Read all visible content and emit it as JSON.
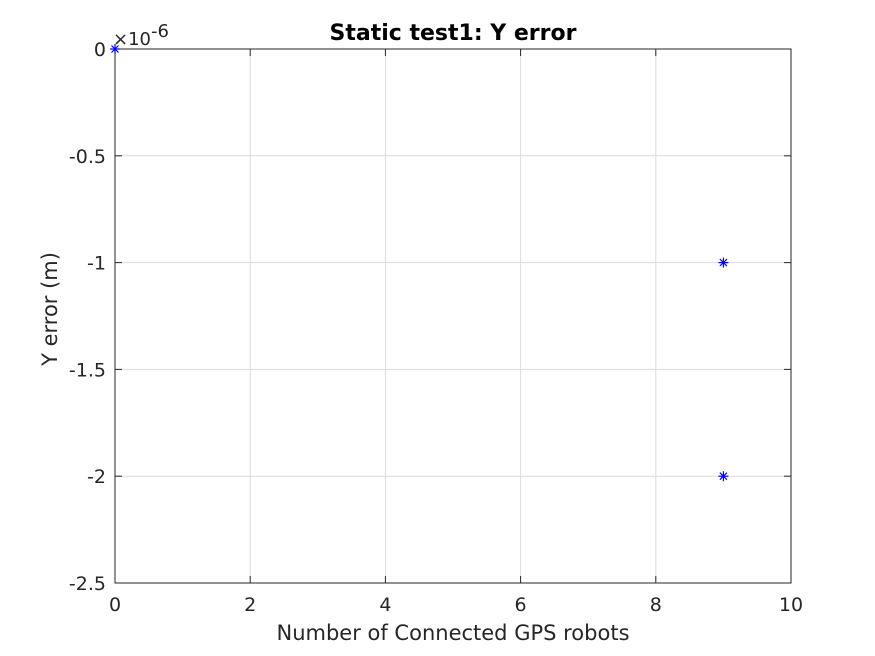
{
  "chart_data": {
    "type": "scatter",
    "title": "Static test1: Y error",
    "xlabel": "Number of Connected GPS robots",
    "ylabel": "Y error (m)",
    "xlim": [
      0,
      10
    ],
    "ylim": [
      -2.5e-06,
      0
    ],
    "x_ticks": [
      0,
      2,
      4,
      6,
      8,
      10
    ],
    "x_tick_labels": [
      "0",
      "2",
      "4",
      "6",
      "8",
      "10"
    ],
    "y_ticks": [
      0,
      -5e-07,
      -1e-06,
      -1.5e-06,
      -2e-06,
      -2.5e-06
    ],
    "y_tick_labels": [
      "0",
      "-0.5",
      "-1",
      "-1.5",
      "-2",
      "-2.5"
    ],
    "y_exponent": {
      "base": "×10",
      "power": "-6"
    },
    "grid": true,
    "marker": "asterisk",
    "series": [
      {
        "x": [
          0,
          9,
          9
        ],
        "y": [
          0,
          -1e-06,
          -2e-06
        ],
        "color": "#0000ff"
      }
    ]
  }
}
